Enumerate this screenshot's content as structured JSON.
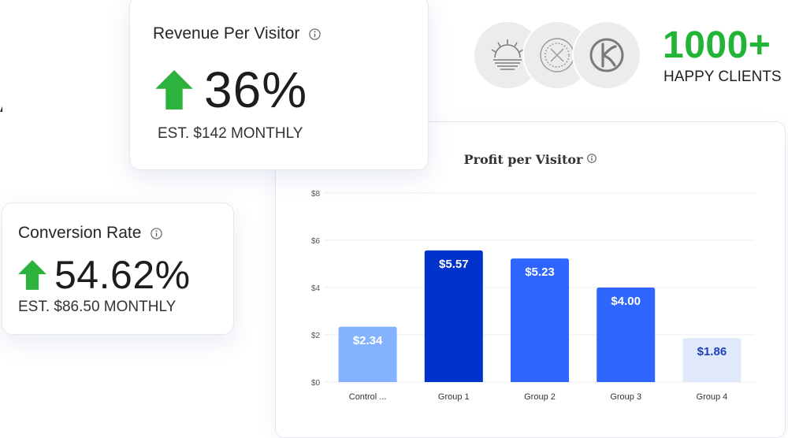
{
  "revenue_card": {
    "title": "Revenue Per Visitor",
    "value": "36%",
    "estimate": "EST. $142 MONTHLY"
  },
  "conversion_card": {
    "title": "Conversion Rate",
    "value": "54.62%",
    "estimate": "EST. $86.50 MONTHLY"
  },
  "clients": {
    "count": "1000+",
    "label": "HAPPY CLIENTS",
    "logo_icons": [
      "sunrise-logo-icon",
      "x-badge-logo-icon",
      "k-monogram-logo-icon"
    ]
  },
  "colors": {
    "positive_green": "#22b436",
    "arrow_green": "#2eb23e"
  },
  "chart_data": {
    "type": "bar",
    "title": "Profit per Visitor",
    "categories": [
      "Control ...",
      "Group 1",
      "Group 2",
      "Group 3",
      "Group 4"
    ],
    "values": [
      2.34,
      5.57,
      5.23,
      4.0,
      1.86
    ],
    "data_labels": [
      "$2.34",
      "$5.57",
      "$5.23",
      "$4.00",
      "$1.86"
    ],
    "bar_colors": [
      "#85b2ff",
      "#0033cc",
      "#2e66ff",
      "#2e66ff",
      "#e0e8fb"
    ],
    "label_colors": [
      "#ffffff",
      "#ffffff",
      "#ffffff",
      "#ffffff",
      "#1e40b8"
    ],
    "ylim": [
      0,
      8
    ],
    "yticks": [
      0,
      2,
      4,
      6,
      8
    ],
    "ytick_labels": [
      "$0",
      "$2",
      "$4",
      "$6",
      "$8"
    ],
    "grid": true,
    "xlabel": "",
    "ylabel": ""
  }
}
